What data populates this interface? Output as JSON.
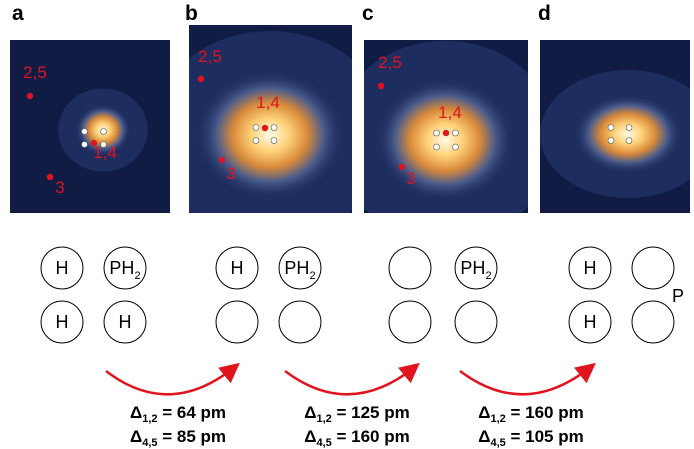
{
  "panels": [
    {
      "label": "a",
      "annotations": [
        "2,5",
        "1,4",
        "3"
      ]
    },
    {
      "label": "b",
      "annotations": [
        "2,5",
        "1,4",
        "3"
      ]
    },
    {
      "label": "c",
      "annotations": [
        "2,5",
        "1,4",
        "3"
      ]
    },
    {
      "label": "d",
      "annotations": []
    }
  ],
  "molecules": [
    {
      "cells": [
        {
          "main": "H"
        },
        {
          "main": "PH",
          "sub": "2"
        },
        {
          "main": "H"
        },
        {
          "main": "H"
        }
      ]
    },
    {
      "cells": [
        {
          "main": "H"
        },
        {
          "main": "PH",
          "sub": "2"
        },
        null,
        null
      ]
    },
    {
      "cells": [
        null,
        {
          "main": "PH",
          "sub": "2"
        },
        null,
        null
      ]
    },
    {
      "cells": [
        {
          "main": "H"
        },
        null,
        {
          "main": "H"
        },
        null
      ],
      "extra": "P"
    }
  ],
  "deltas": [
    {
      "lines": [
        {
          "symbol": "Δ",
          "sub": "1,2",
          "text": " = 64 pm"
        },
        {
          "symbol": "Δ",
          "sub": "4,5",
          "text": " = 85 pm"
        }
      ]
    },
    {
      "lines": [
        {
          "symbol": "Δ",
          "sub": "1,2",
          "text": " = 125 pm"
        },
        {
          "symbol": "Δ",
          "sub": "4,5",
          "text": " = 160 pm"
        }
      ]
    },
    {
      "lines": [
        {
          "symbol": "Δ",
          "sub": "1,2",
          "text": " = 160 pm"
        },
        {
          "symbol": "Δ",
          "sub": "4,5",
          "text": " = 105 pm"
        }
      ]
    }
  ]
}
